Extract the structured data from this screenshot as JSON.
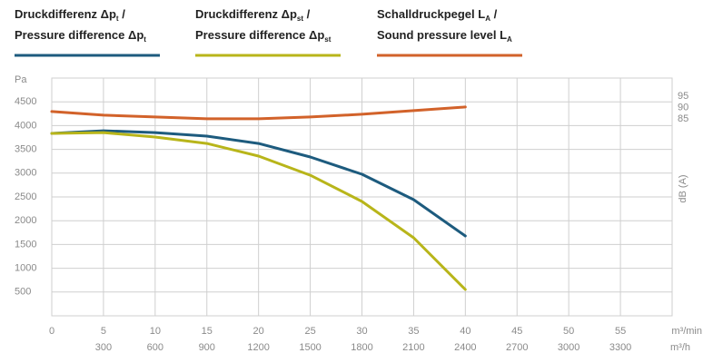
{
  "chart_data": {
    "type": "line",
    "ylabel": "Pa",
    "xlabel": "m³/min",
    "x2label": "m³/h",
    "y2label": "dB (A)",
    "x": [
      0,
      5,
      10,
      15,
      20,
      25,
      30,
      35,
      40
    ],
    "xlim": [
      0,
      60
    ],
    "xticks": [
      0,
      5,
      10,
      15,
      20,
      25,
      30,
      35,
      40,
      45,
      50,
      55
    ],
    "x2lim": [
      0,
      3600
    ],
    "x2ticks": [
      300,
      600,
      900,
      1200,
      1500,
      1800,
      2100,
      2400,
      2700,
      3000,
      3300
    ],
    "ylim": [
      0,
      5000
    ],
    "yticks": [
      500,
      1000,
      1500,
      2000,
      2500,
      3000,
      3500,
      4000,
      4500
    ],
    "y2lim": [
      -2,
      103
    ],
    "y2ticks": [
      85,
      90,
      95
    ],
    "grid": true,
    "series": [
      {
        "name": "Druckdifferenz Δp",
        "name_sub": "t",
        "name_suffix": " /",
        "name2": "Pressure difference Δp",
        "name2_sub": "t",
        "color": "#1d5b7e",
        "values": [
          3835,
          3892,
          3854,
          3778,
          3625,
          3339,
          2977,
          2442,
          1679
        ]
      },
      {
        "name": "Druckdifferenz Δp",
        "name_sub": "st",
        "name_suffix": " /",
        "name2": "Pressure difference Δp",
        "name2_sub": "st",
        "color": "#b8b51a",
        "values": [
          3835,
          3854,
          3759,
          3625,
          3358,
          2957,
          2404,
          1641,
          553
        ]
      },
      {
        "name": "Schalldruckpegel L",
        "name_sub": "A",
        "name_suffix": " /",
        "name2": "Sound pressure level L",
        "name2_sub": "A",
        "color": "#d2622a",
        "axis": "y2",
        "values": [
          88.2,
          86.6,
          85.8,
          85,
          85,
          85.8,
          87,
          88.6,
          90.2
        ]
      }
    ]
  }
}
